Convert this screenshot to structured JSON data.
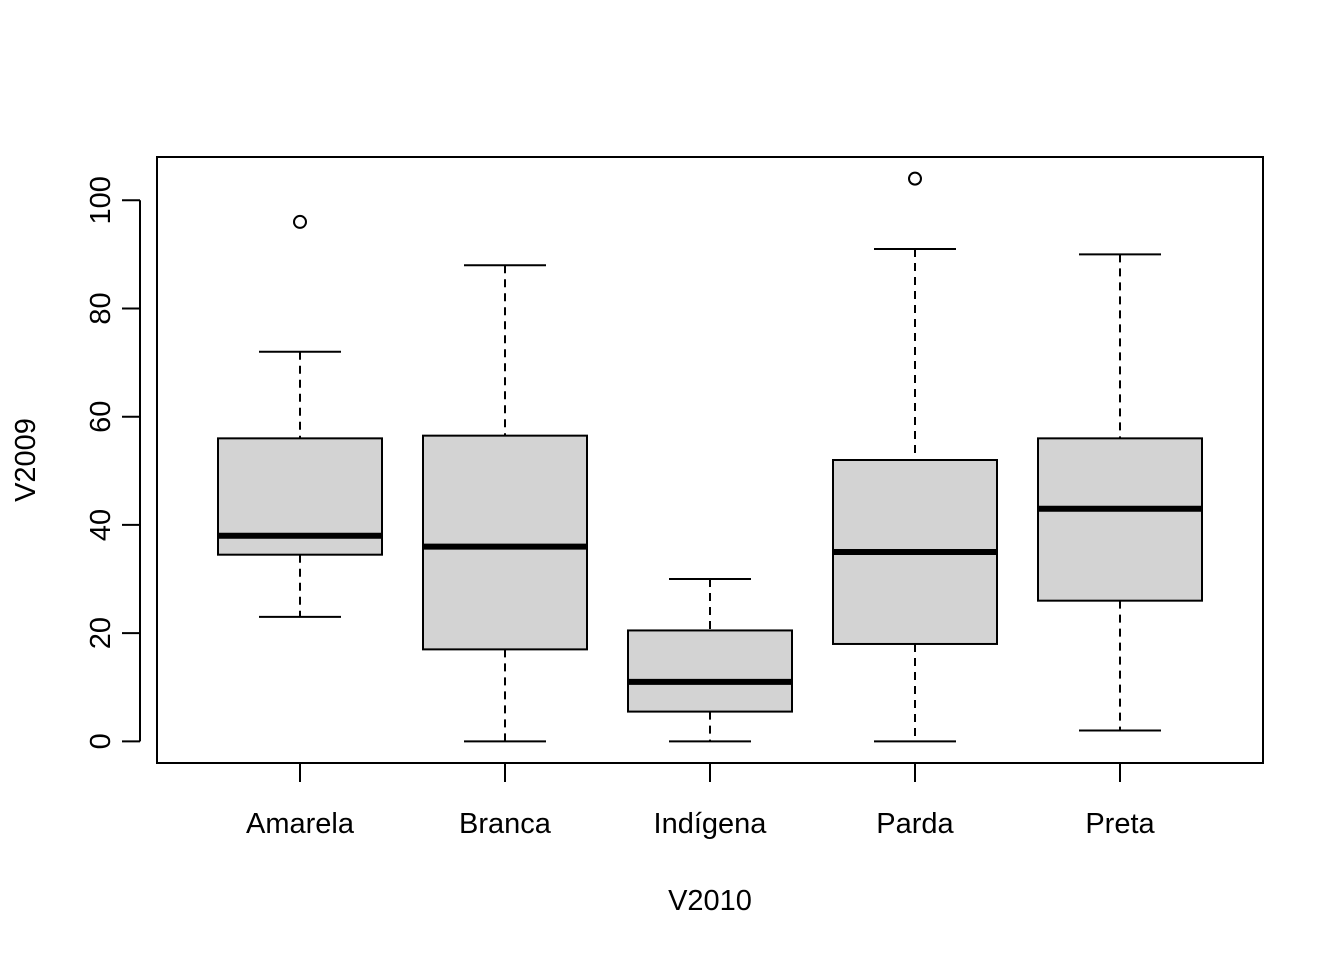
{
  "chart_data": {
    "type": "box",
    "xlabel": "V2010",
    "ylabel": "V2009",
    "ylim": [
      -4,
      108
    ],
    "yticks": [
      0,
      20,
      40,
      60,
      80,
      100
    ],
    "ytick_labels": [
      "0",
      "20",
      "40",
      "60",
      "80",
      "100"
    ],
    "categories": [
      "Amarela",
      "Branca",
      "Indígena",
      "Parda",
      "Preta"
    ],
    "boxes": [
      {
        "category": "Amarela",
        "whisker_low": 23,
        "q1": 34.5,
        "median": 38,
        "q3": 56,
        "whisker_high": 72,
        "outliers": [
          96
        ]
      },
      {
        "category": "Branca",
        "whisker_low": 0,
        "q1": 17,
        "median": 36,
        "q3": 56.5,
        "whisker_high": 88,
        "outliers": []
      },
      {
        "category": "Indígena",
        "whisker_low": 0,
        "q1": 5.5,
        "median": 11,
        "q3": 20.5,
        "whisker_high": 30,
        "outliers": []
      },
      {
        "category": "Parda",
        "whisker_low": 0,
        "q1": 18,
        "median": 35,
        "q3": 52,
        "whisker_high": 91,
        "outliers": [
          104
        ]
      },
      {
        "category": "Preta",
        "whisker_low": 2,
        "q1": 26,
        "median": 43,
        "q3": 56,
        "whisker_high": 90,
        "outliers": []
      }
    ],
    "box_fill": "#d3d3d3",
    "line_color": "#000000",
    "grid": false,
    "legend": "none"
  }
}
